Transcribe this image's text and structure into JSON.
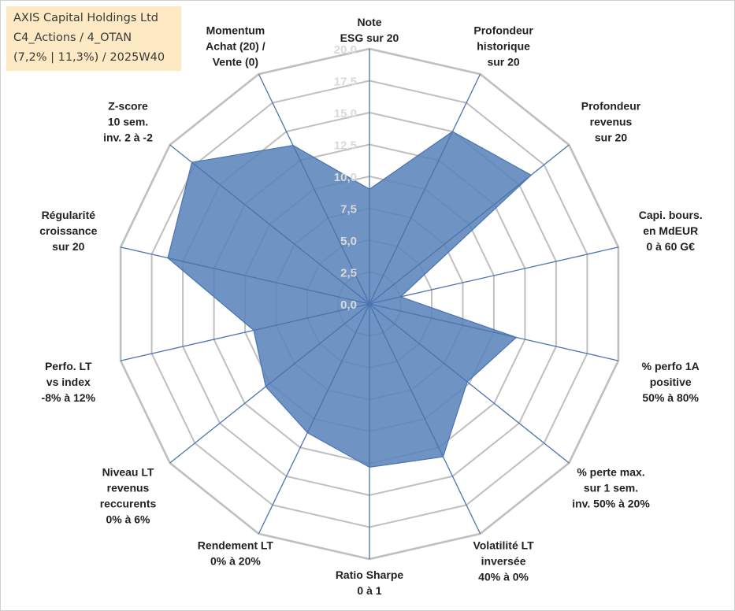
{
  "title_box": {
    "line1": "AXIS Capital Holdings Ltd",
    "line2": "C4_Actions / 4_OTAN",
    "line3": "(7,2% | 11,3%) / 2025W40"
  },
  "chart_data": {
    "type": "radar",
    "rmin": 0,
    "rmax": 20,
    "tick_labels": [
      "0,0",
      "2,5",
      "5,0",
      "7,5",
      "10,0",
      "12,5",
      "15,0",
      "17,5",
      "20,0"
    ],
    "grid": true,
    "legend": "none",
    "fill_color": "#5b84b9",
    "line_color": "#4a74b0",
    "grid_color": "#bfbfbf",
    "axes": [
      {
        "lines": [
          "Note",
          "ESG sur 20"
        ],
        "value": 9.0
      },
      {
        "lines": [
          "Profondeur",
          "historique",
          "sur 20"
        ],
        "value": 15.0
      },
      {
        "lines": [
          "Profondeur",
          "revenus",
          "sur 20"
        ],
        "value": 16.2
      },
      {
        "lines": [
          "Capi. bours.",
          "en MdEUR",
          "0 à 60 G€"
        ],
        "value": 2.5
      },
      {
        "lines": [
          "% perfo 1A",
          "positive",
          "50% à 80%"
        ],
        "value": 11.8
      },
      {
        "lines": [
          "% perte max.",
          "sur 1 sem.",
          "inv. 50% à 20%"
        ],
        "value": 9.8
      },
      {
        "lines": [
          "Volatilité LT",
          "inversée",
          "40% à 0%"
        ],
        "value": 13.3
      },
      {
        "lines": [
          "Ratio Sharpe",
          "0 à 1"
        ],
        "value": 12.8
      },
      {
        "lines": [
          "Rendement LT",
          "0% à 20%"
        ],
        "value": 11.2
      },
      {
        "lines": [
          "Niveau LT",
          "revenus",
          "reccurents",
          "0% à 6%"
        ],
        "value": 10.4
      },
      {
        "lines": [
          "Perfo. LT",
          "vs index",
          "-8% à 12%"
        ],
        "value": 9.3
      },
      {
        "lines": [
          "Régularité",
          "croissance",
          "sur 20"
        ],
        "value": 16.2
      },
      {
        "lines": [
          "Z-score",
          "10 sem.",
          "inv. 2 à -2"
        ],
        "value": 17.8
      },
      {
        "lines": [
          "Momentum",
          "Achat (20) /",
          "Vente (0)"
        ],
        "value": 13.8
      }
    ]
  }
}
